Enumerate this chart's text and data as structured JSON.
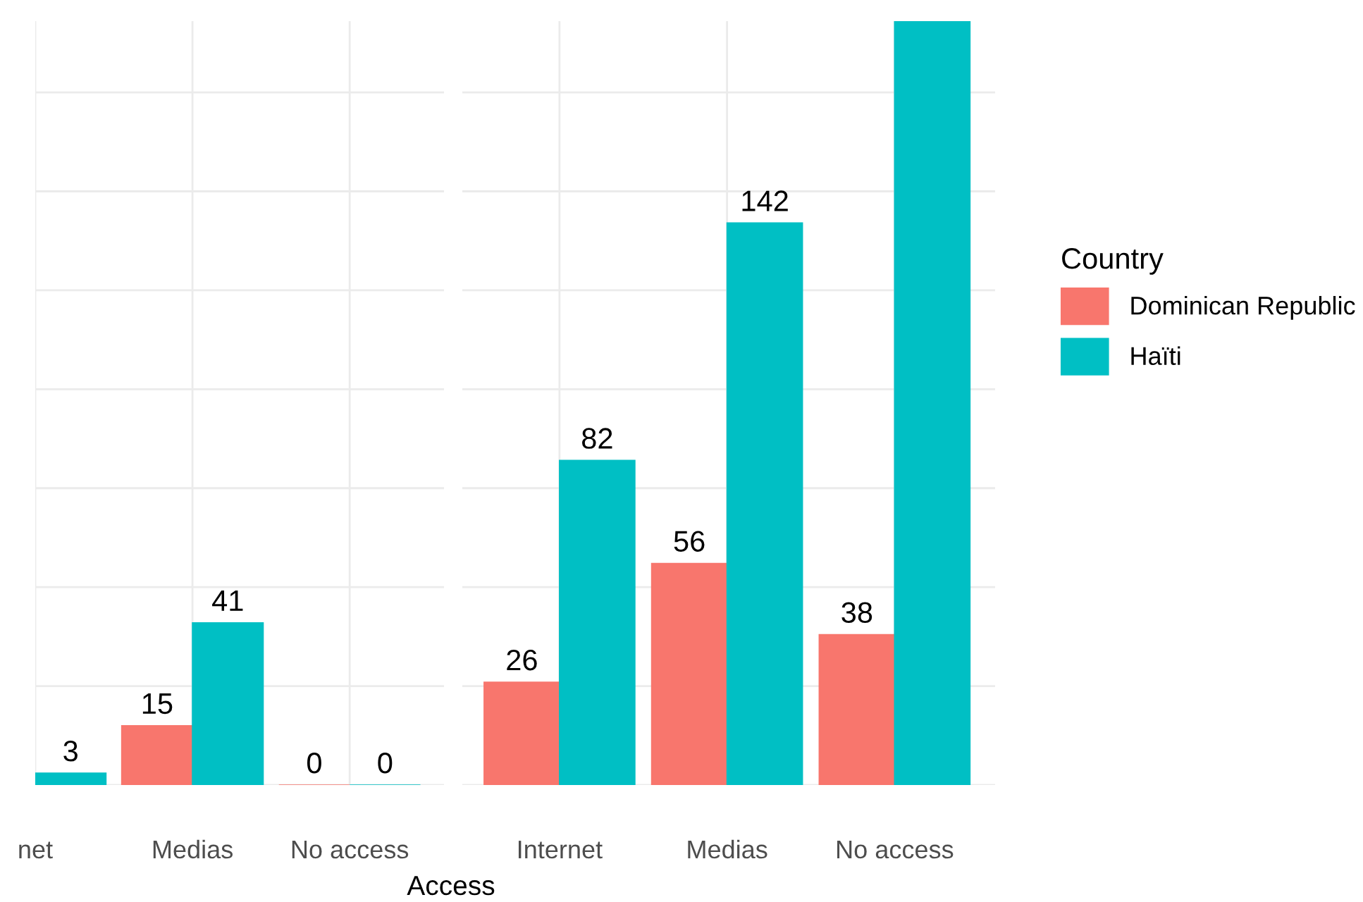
{
  "chart_data": [
    {
      "type": "bar",
      "xlabel": "Access",
      "categories": [
        "net",
        "Medias",
        "No access"
      ],
      "series": [
        {
          "color": "#f8766d",
          "values": [
            null,
            15,
            0
          ],
          "value_labels": [
            null,
            "15",
            "0"
          ]
        },
        {
          "color": "#00bfc4",
          "values": [
            3,
            41,
            0
          ],
          "value_labels": [
            "3",
            "41",
            "0"
          ]
        }
      ],
      "ylim": [
        0,
        193
      ],
      "yticks": [
        {
          "value": 0,
          "label": null
        },
        {
          "value": 25,
          "label": null
        },
        {
          "value": 50,
          "label": null
        },
        {
          "value": 75,
          "label": null
        },
        {
          "value": 100,
          "label": null
        },
        {
          "value": 125,
          "label": null
        },
        {
          "value": 150,
          "label": null
        },
        {
          "value": 175,
          "label": null
        }
      ],
      "grid": true,
      "tick_labels": "x"
    },
    {
      "type": "bar",
      "categories": [
        "Internet",
        "Medias",
        "No access"
      ],
      "legend_title": "Country",
      "series": [
        {
          "name": "Dominican Republic",
          "color": "#f8766d",
          "values": [
            26,
            56,
            38
          ],
          "value_labels": [
            "26",
            "56",
            "38"
          ]
        },
        {
          "name": "Haïti",
          "color": "#00bfc4",
          "values": [
            82,
            142,
            193
          ],
          "value_labels": [
            "82",
            "142",
            null
          ]
        }
      ],
      "ylim": [
        0,
        193
      ],
      "yticks": [
        {
          "value": 0,
          "label": null
        },
        {
          "value": 25,
          "label": null
        },
        {
          "value": 50,
          "label": null
        },
        {
          "value": 75,
          "label": null
        },
        {
          "value": 100,
          "label": null
        },
        {
          "value": 125,
          "label": null
        },
        {
          "value": 150,
          "label": null
        },
        {
          "value": 175,
          "label": null
        }
      ],
      "grid": true,
      "tick_labels": "x",
      "legend": "right"
    }
  ]
}
